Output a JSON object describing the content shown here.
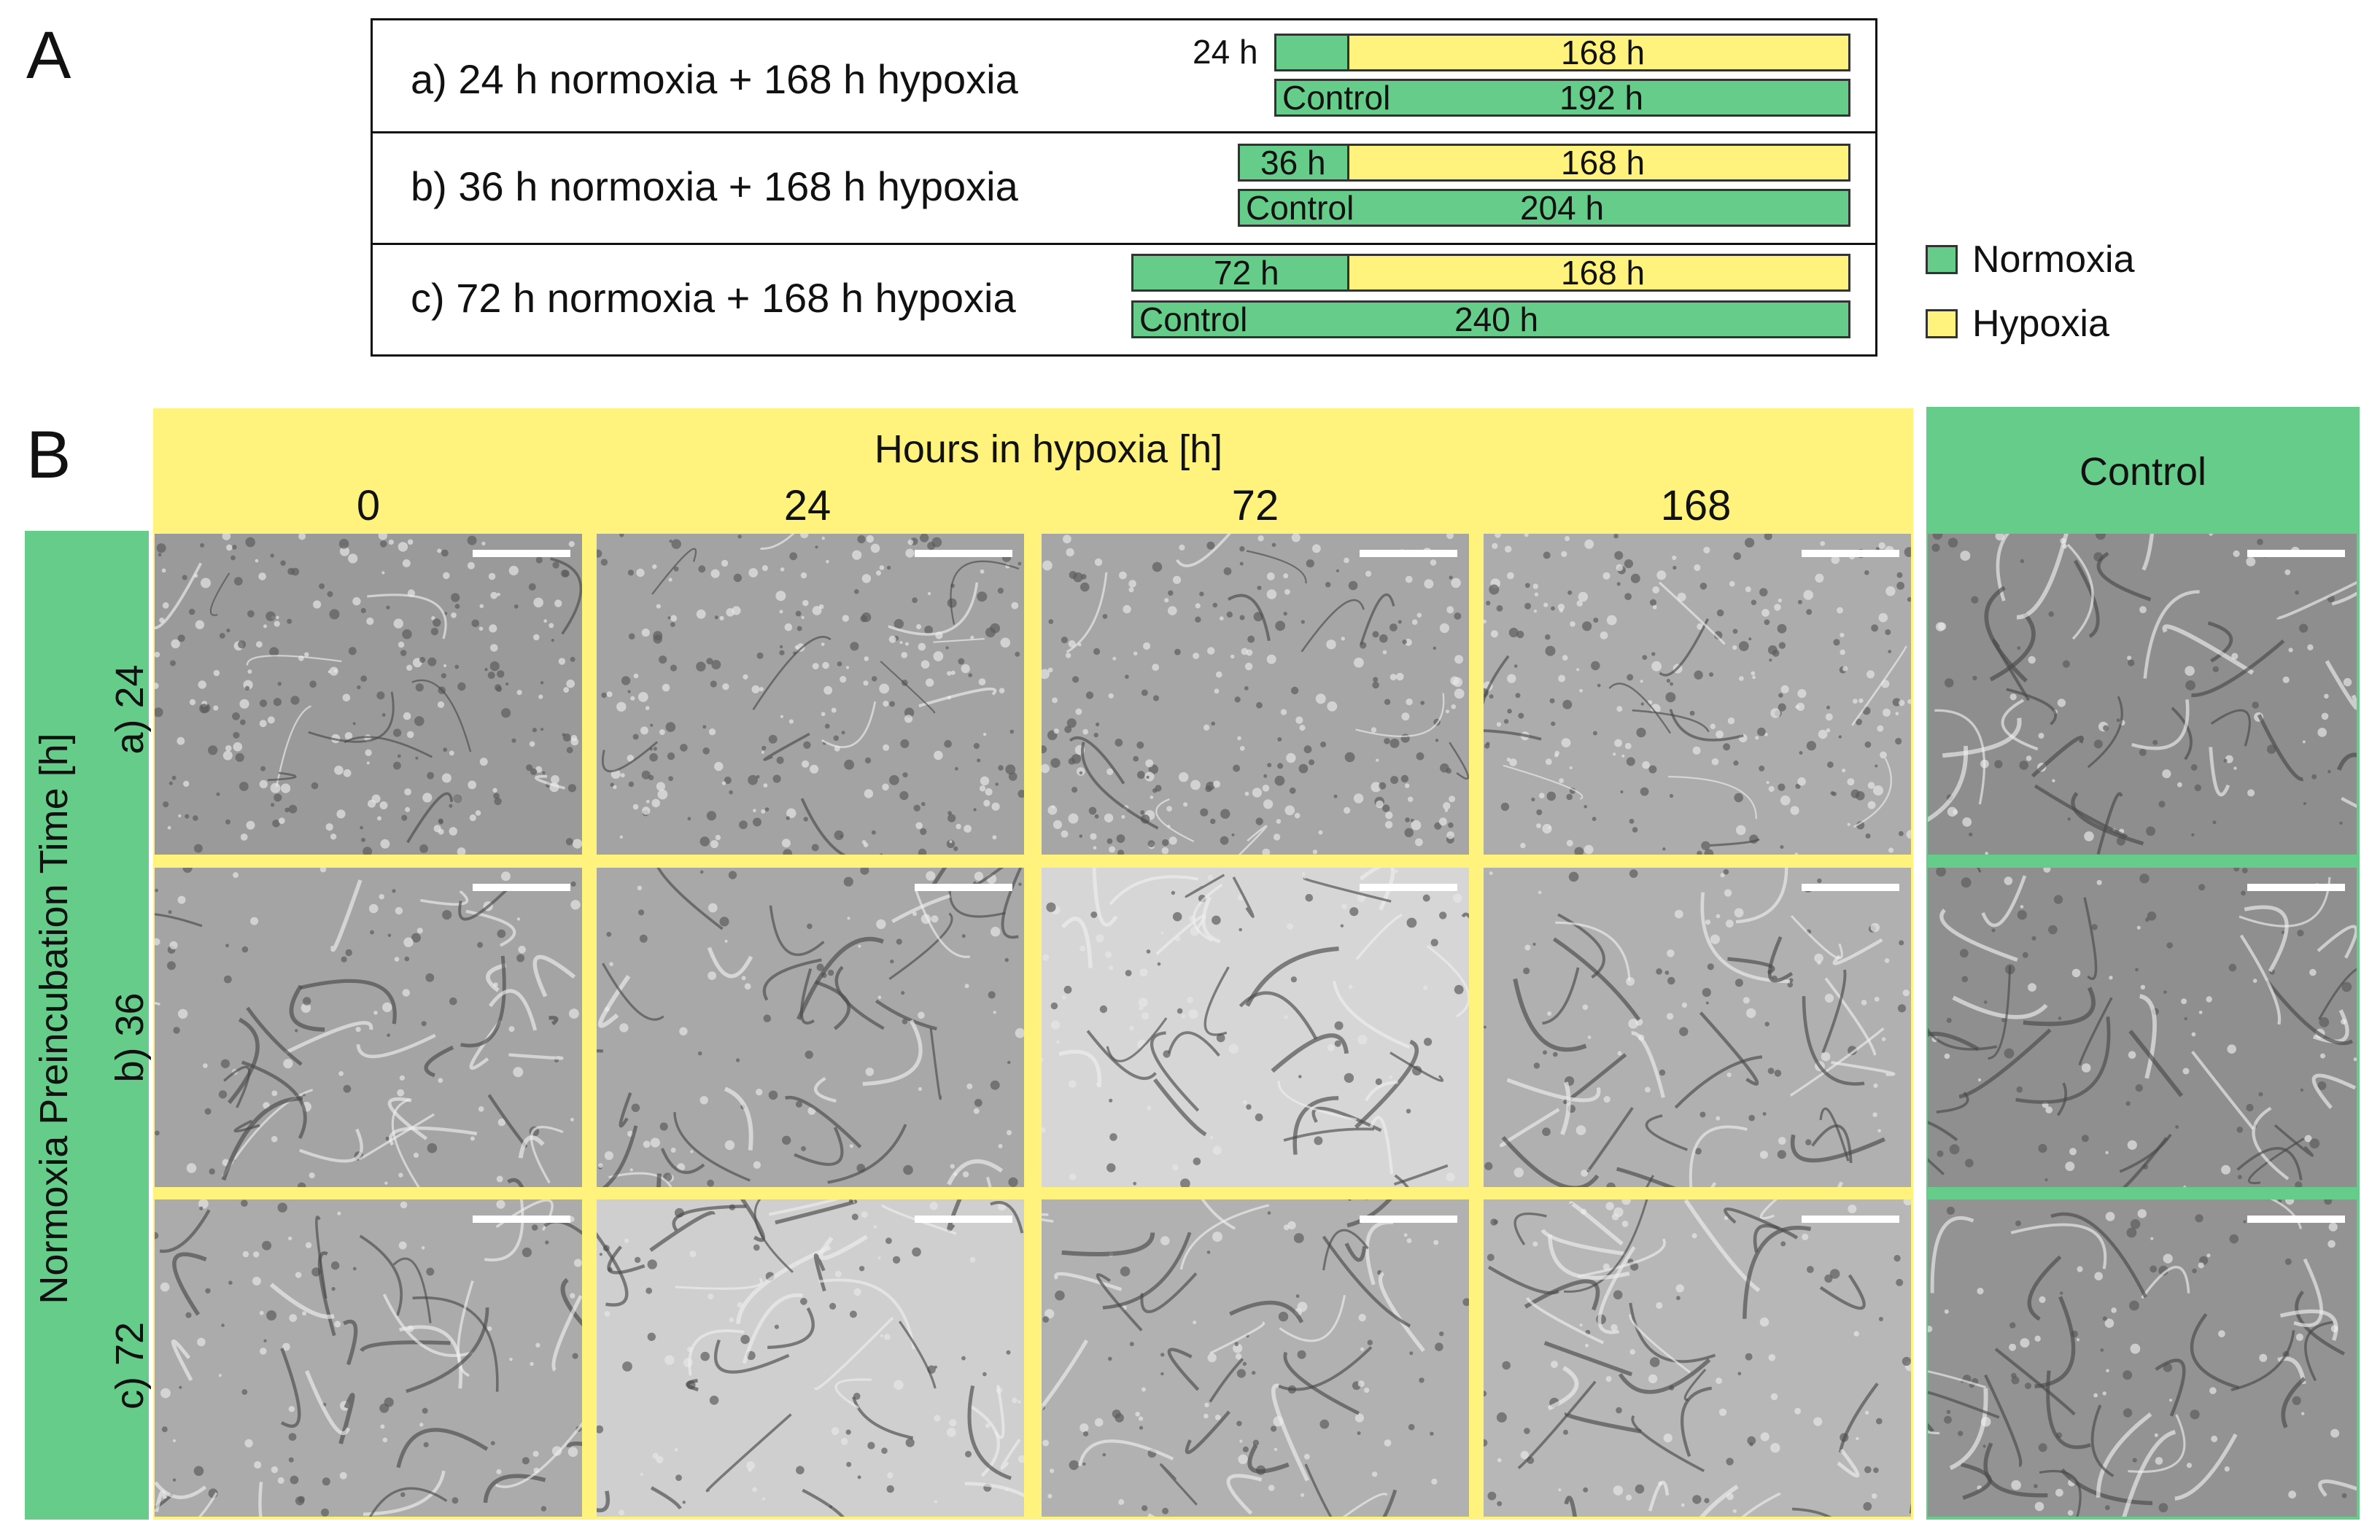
{
  "panel_a": {
    "letter": "A",
    "rows": [
      {
        "label": "a) 24 h normoxia + 168 h hypoxia",
        "normoxia_label": "24 h",
        "hypoxia_label": "168 h",
        "control_label": "Control",
        "control_time": "192 h",
        "normoxia_hours": 24,
        "hypoxia_hours": 168,
        "control_hours": 192
      },
      {
        "label": "b) 36 h normoxia + 168 h hypoxia",
        "normoxia_label": "36 h",
        "hypoxia_label": "168 h",
        "control_label": "Control",
        "control_time": "204 h",
        "normoxia_hours": 36,
        "hypoxia_hours": 168,
        "control_hours": 204
      },
      {
        "label": "c) 72 h normoxia + 168 h hypoxia",
        "normoxia_label": "72 h",
        "hypoxia_label": "168 h",
        "control_label": "Control",
        "control_time": "240 h",
        "normoxia_hours": 72,
        "hypoxia_hours": 168,
        "control_hours": 240
      }
    ],
    "legend": [
      {
        "label": "Normoxia",
        "color": "#66cc8a"
      },
      {
        "label": "Hypoxia",
        "color": "#fff37e"
      }
    ]
  },
  "panel_b": {
    "letter": "B",
    "header_title": "Hours in hypoxia [h]",
    "columns": [
      "0",
      "24",
      "72",
      "168"
    ],
    "control_header": "Control",
    "row_axis_label": "Normoxia Preincubation Time [h]",
    "rows": [
      "a) 24",
      "b) 36",
      "c) 72"
    ]
  },
  "colors": {
    "normoxia": "#66cc8a",
    "hypoxia": "#fff37e"
  }
}
